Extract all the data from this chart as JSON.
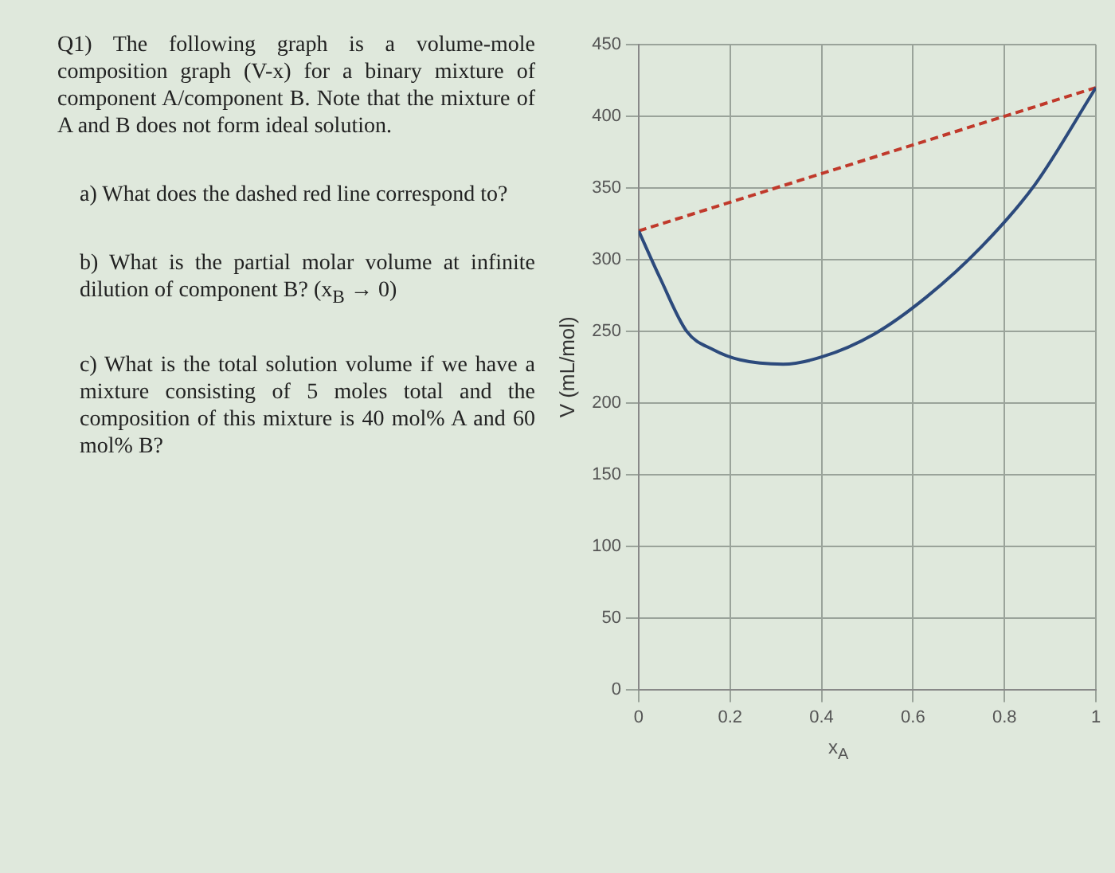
{
  "chart_data": {
    "type": "line",
    "xlabel": "x$_{A}$",
    "ylabel": "V (mL/mol)",
    "annotations": [
      "Q1) The following graph is a volume-mole composition graph (V-x) for a binary mixture of component A/component B. Note that the mixture of A and B does not form ideal solution.",
      "a) What does the dashed red line correspond to?",
      "b) What is the partial molar volume at infinite dilution of component B? (x$_{B}$ → 0)",
      "c) What is the total solution volume if we have a mixture consisting of 5 moles total and the composition of this mixture is 40 mol% A and 60 mol% B?"
    ],
    "xlim": [
      0,
      1
    ],
    "xticks": [
      0,
      0.2,
      0.4,
      0.6,
      0.8,
      1
    ],
    "ylim": [
      0,
      450
    ],
    "yticks": [
      0,
      50,
      100,
      150,
      200,
      250,
      300,
      350,
      400,
      450
    ],
    "grid": true,
    "legend": false,
    "marker": "none",
    "series": [
      {
        "color": "#2c4a7c",
        "line_style": "solid",
        "x": [
          0,
          0.047,
          0.105,
          0.164,
          0.222,
          0.316,
          0.4,
          0.515,
          0.63,
          0.75,
          0.866,
          1
        ],
        "values": [
          320,
          287,
          250,
          237,
          230,
          227,
          232,
          248,
          274,
          309,
          352,
          420
        ]
      },
      {
        "color": "#c0392b",
        "line_style": "dashed",
        "x": [
          0,
          1
        ],
        "values": [
          320,
          420
        ]
      }
    ]
  }
}
